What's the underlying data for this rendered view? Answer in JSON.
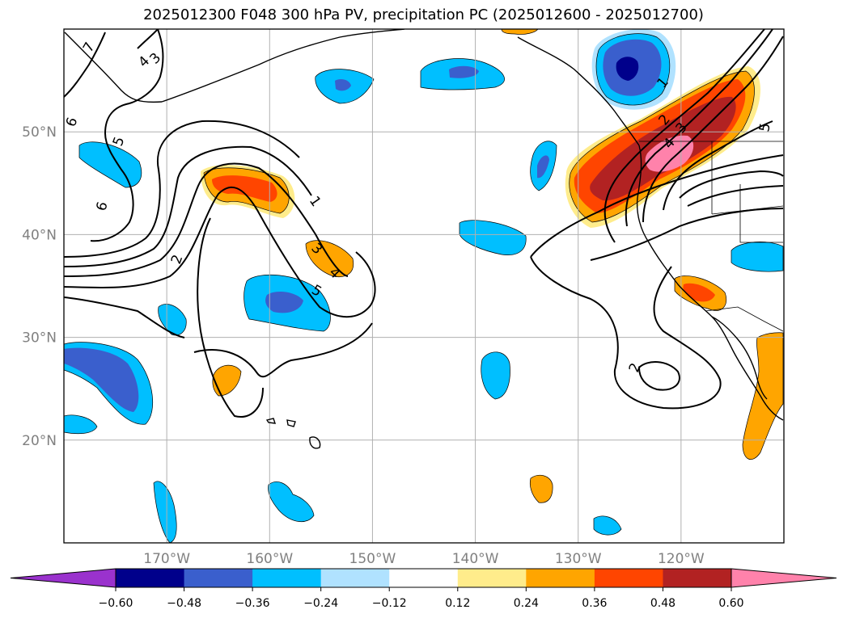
{
  "title": "2025012300 F048 300 hPa PV, precipitation PC (2025012600 - 2025012700)",
  "chart_data": {
    "type": "contour_map",
    "title": "2025012300 F048 300 hPa PV, precipitation PC (2025012600 - 2025012700)",
    "projection": "PlateCarree",
    "lon_range": [
      -180,
      -110
    ],
    "lat_range": [
      10,
      60
    ],
    "lat_ticks": [
      {
        "value": 20,
        "label": "20°N"
      },
      {
        "value": 30,
        "label": "30°N"
      },
      {
        "value": 40,
        "label": "40°N"
      },
      {
        "value": 50,
        "label": "50°N"
      }
    ],
    "lon_ticks": [
      {
        "value": -170,
        "label": "170°W"
      },
      {
        "value": -160,
        "label": "160°W"
      },
      {
        "value": -150,
        "label": "150°W"
      },
      {
        "value": -140,
        "label": "140°W"
      },
      {
        "value": -130,
        "label": "130°W"
      },
      {
        "value": -120,
        "label": "120°W"
      }
    ],
    "grid": true,
    "colorbar": {
      "orientation": "horizontal",
      "extend": "both",
      "levels": [
        -0.6,
        -0.48,
        -0.36,
        -0.24,
        -0.12,
        0.12,
        0.24,
        0.36,
        0.48,
        0.6
      ],
      "tick_labels": [
        "−0.60",
        "−0.48",
        "−0.36",
        "−0.24",
        "−0.12",
        "0.12",
        "0.24",
        "0.36",
        "0.48",
        "0.60"
      ],
      "colors": [
        "#9a32cd",
        "#00008b",
        "#3a5fcd",
        "#00bfff",
        "#b0e2ff",
        "#ffffff",
        "#ffec8b",
        "#ffa500",
        "#ff4500",
        "#b22222",
        "#ff82ab"
      ]
    },
    "pv_contour_labels": [
      "1",
      "2",
      "3",
      "4",
      "5",
      "6",
      "7"
    ]
  }
}
